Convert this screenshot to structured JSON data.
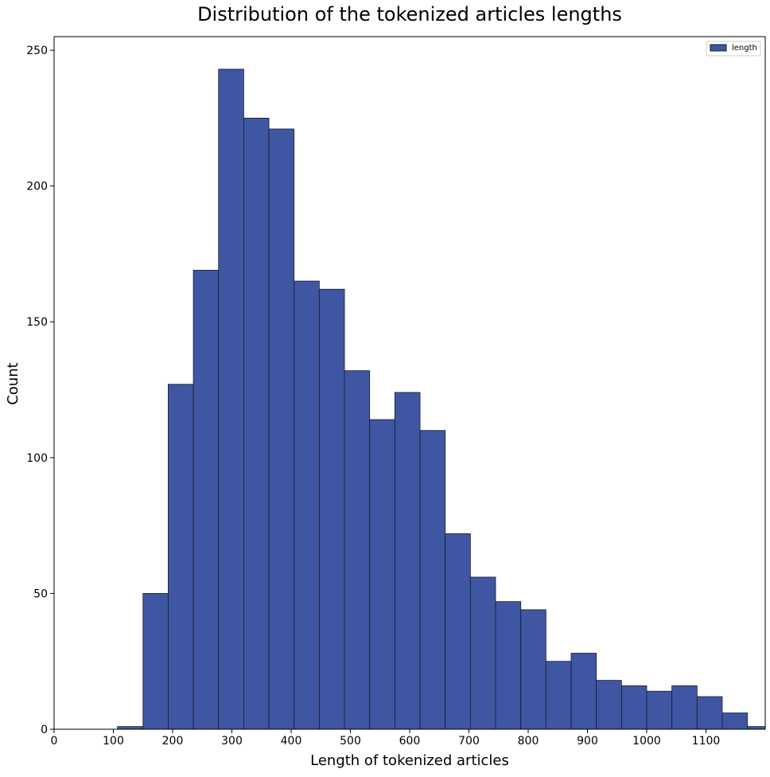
{
  "chart_data": {
    "type": "bar",
    "title": "Distribution of the tokenized articles lengths",
    "xlabel": "Length of tokenized articles",
    "ylabel": "Count",
    "xlim": [
      0,
      1200
    ],
    "ylim": [
      0,
      255
    ],
    "x_ticks": [
      0,
      100,
      200,
      300,
      400,
      500,
      600,
      700,
      800,
      900,
      1000,
      1100
    ],
    "y_ticks": [
      0,
      50,
      100,
      150,
      200,
      250
    ],
    "grid": false,
    "legend_position": "top-right",
    "series": [
      {
        "name": "length",
        "color": "#3f56a2",
        "edge_color": "#1a1a2e",
        "bin_edges": [
          107,
          150,
          192.5,
          235,
          277.5,
          320,
          362.5,
          405,
          447.5,
          490,
          532.5,
          575,
          617.5,
          660,
          702.5,
          745,
          787.5,
          830,
          872.5,
          915,
          957.5,
          1000,
          1042.5,
          1085,
          1127.5,
          1170,
          1200
        ],
        "values": [
          1,
          50,
          127,
          169,
          243,
          225,
          221,
          165,
          162,
          132,
          114,
          124,
          110,
          72,
          56,
          47,
          44,
          25,
          28,
          18,
          16,
          14,
          16,
          12,
          6,
          1
        ]
      }
    ]
  }
}
